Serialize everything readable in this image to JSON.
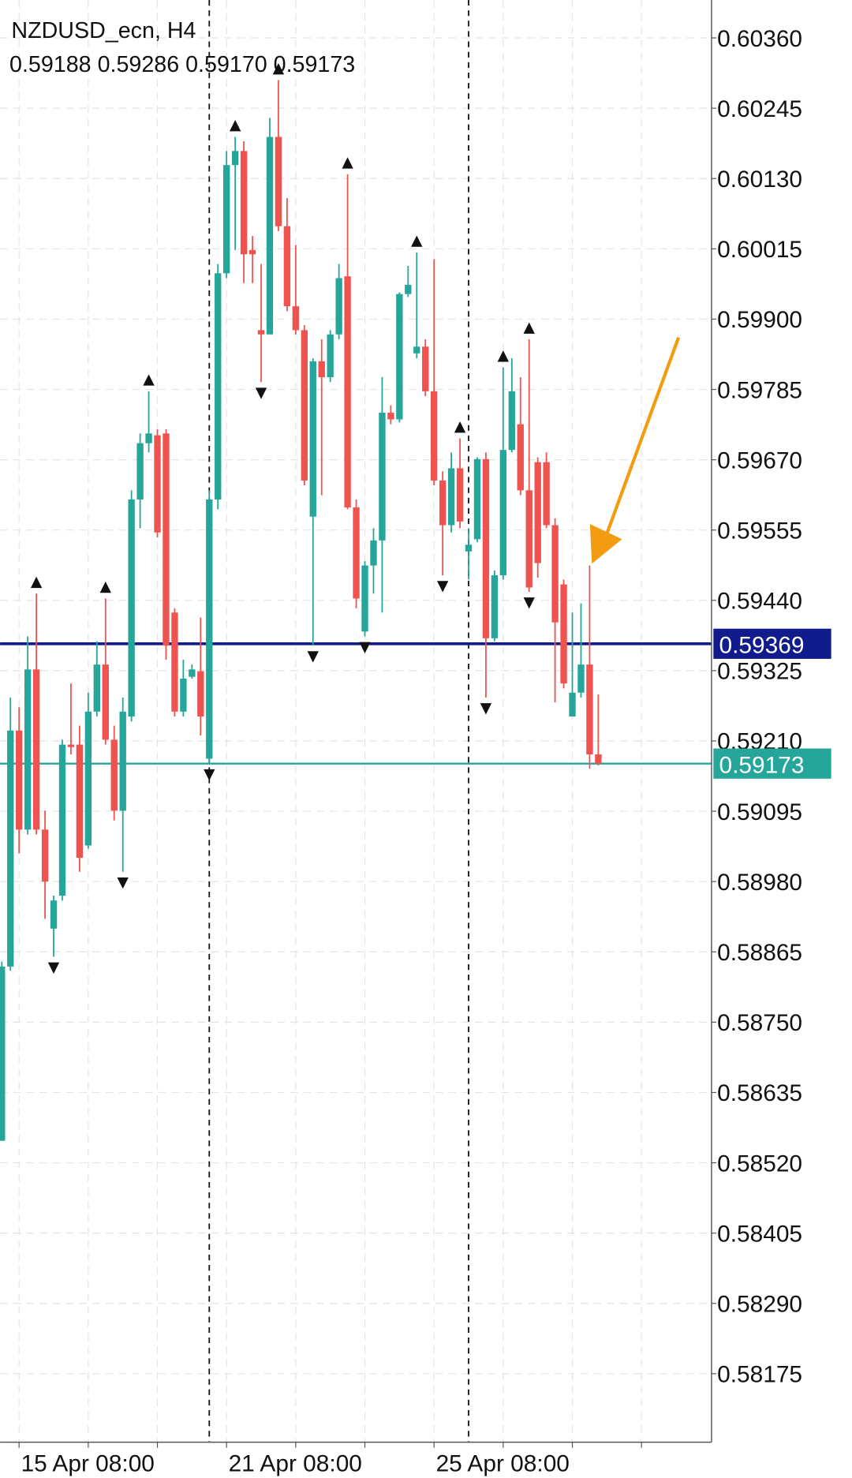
{
  "chart_data": {
    "type": "candlestick",
    "title": "NZDUSD_ecn, H4",
    "info": "0.59188 0.59286 0.59170 0.59173",
    "open": [
      0.58556,
      0.58841,
      0.59227,
      0.59065,
      0.59327,
      0.59065,
      0.58903,
      0.58957,
      0.59204,
      0.59204,
      0.59039,
      0.59258,
      0.59335,
      0.59212,
      0.59096,
      0.5925,
      0.59605,
      0.59697,
      0.5971,
      0.59713,
      0.5942,
      0.59258,
      0.59315,
      0.59324,
      0.59181,
      0.59605,
      0.59975,
      0.60152,
      0.60175,
      0.60013,
      0.59882,
      0.59875,
      0.60198,
      0.60052,
      0.59921,
      0.59882,
      0.59577,
      0.59831,
      0.59805,
      0.59875,
      0.5997,
      0.59592,
      0.59389,
      0.59497,
      0.59538,
      0.59747,
      0.59736,
      0.59941,
      0.59844,
      0.59855,
      0.59782,
      0.59636,
      0.59563,
      0.59656,
      0.5952,
      0.5954,
      0.59671,
      0.59378,
      0.59481,
      0.59686,
      0.59728,
      0.5962,
      0.59666,
      0.59666,
      0.59563,
      0.59466,
      0.5925,
      0.59289,
      0.59335,
      0.59188
    ],
    "high": [
      0.58849,
      0.59281,
      0.59265,
      0.59381,
      0.59451,
      0.59096,
      0.58957,
      0.59212,
      0.59304,
      0.59235,
      0.59289,
      0.59373,
      0.59443,
      0.59235,
      0.59281,
      0.5962,
      0.59713,
      0.59782,
      0.5972,
      0.5972,
      0.59427,
      0.59343,
      0.59335,
      0.59412,
      0.5962,
      0.5999,
      0.60175,
      0.60198,
      0.60191,
      0.60036,
      0.5999,
      0.60229,
      0.60291,
      0.60098,
      0.60021,
      0.5989,
      0.59836,
      0.59867,
      0.59882,
      0.5999,
      0.60137,
      0.59605,
      0.59504,
      0.59558,
      0.59805,
      0.59759,
      0.59944,
      0.59987,
      0.60009,
      0.59867,
      0.59998,
      0.59651,
      0.59682,
      0.59705,
      0.59558,
      0.59674,
      0.59682,
      0.59489,
      0.59821,
      0.59836,
      0.59805,
      0.59867,
      0.59674,
      0.59682,
      0.59574,
      0.59474,
      0.5942,
      0.59435,
      0.59497,
      0.59286
    ],
    "low": [
      0.58556,
      0.58834,
      0.59026,
      0.59057,
      0.59057,
      0.58919,
      0.58857,
      0.58949,
      0.59188,
      0.58996,
      0.59034,
      0.5925,
      0.59204,
      0.5908,
      0.58996,
      0.59242,
      0.59558,
      0.59682,
      0.59543,
      0.59343,
      0.5925,
      0.5925,
      0.59312,
      0.59219,
      0.59173,
      0.59589,
      0.59967,
      0.60013,
      0.59959,
      0.59959,
      0.59797,
      0.59875,
      0.60044,
      0.59913,
      0.59875,
      0.59628,
      0.59366,
      0.59612,
      0.59797,
      0.59867,
      0.59589,
      0.59427,
      0.59381,
      0.59451,
      0.5942,
      0.59728,
      0.59731,
      0.59936,
      0.59836,
      0.59774,
      0.59628,
      0.59481,
      0.59551,
      0.59558,
      0.59474,
      0.59535,
      0.59281,
      0.59373,
      0.59474,
      0.59682,
      0.59612,
      0.59454,
      0.59477,
      0.59558,
      0.59273,
      0.59296,
      0.5925,
      0.59281,
      0.59165,
      0.5917
    ],
    "close": [
      0.58841,
      0.59227,
      0.59065,
      0.59327,
      0.59065,
      0.5898,
      0.58949,
      0.59204,
      0.592,
      0.59019,
      0.59258,
      0.59335,
      0.59212,
      0.59096,
      0.59258,
      0.59605,
      0.59697,
      0.59713,
      0.59551,
      0.59366,
      0.59258,
      0.59312,
      0.59327,
      0.5925,
      0.59605,
      0.59975,
      0.60152,
      0.60175,
      0.60006,
      0.60006,
      0.59875,
      0.60198,
      0.60052,
      0.59921,
      0.59882,
      0.59636,
      0.59831,
      0.59805,
      0.59875,
      0.59967,
      0.59592,
      0.59443,
      0.59497,
      0.59538,
      0.59747,
      0.59736,
      0.59941,
      0.59956,
      0.59855,
      0.59782,
      0.59636,
      0.59563,
      0.59656,
      0.59569,
      0.59531,
      0.59671,
      0.59378,
      0.59481,
      0.59686,
      0.59782,
      0.5962,
      0.59461,
      0.59501,
      0.59563,
      0.59404,
      0.59304,
      0.59289,
      0.59335,
      0.59188,
      0.59173
    ],
    "up_color": "#26a69a",
    "down_color": "#ef5350",
    "fractals_up": [
      4,
      12,
      17,
      27,
      32,
      40,
      48,
      53,
      58,
      61
    ],
    "fractals_down": [
      6,
      14,
      24,
      30,
      36,
      42,
      51,
      56,
      61
    ],
    "separators": [
      24,
      54
    ],
    "price_lines": [
      {
        "value": 0.59369,
        "color": "#101c8c"
      },
      {
        "value": 0.59173,
        "color": "#26a69a"
      }
    ],
    "xlim": [
      -0.2,
      82.1
    ],
    "xticks": [
      {
        "value": 2,
        "label": "15 Apr 08:00"
      },
      {
        "value": 26,
        "label": "21 Apr 08:00"
      },
      {
        "value": 50,
        "label": "25 Apr 08:00"
      }
    ],
    "xgrid": [
      2,
      10,
      18,
      26,
      34,
      42,
      50,
      58,
      66,
      74
    ],
    "ylim": [
      0.58063,
      0.60422
    ],
    "yticks": [
      {
        "value": 0.6036,
        "label": "0.60360"
      },
      0.60245,
      {
        "value": 0.6013,
        "label": "0.60130"
      },
      0.60015,
      {
        "value": 0.599,
        "label": "0.59900"
      },
      0.59785,
      {
        "value": 0.5967,
        "label": "0.59670"
      },
      0.59555,
      {
        "value": 0.5944,
        "label": "0.59440"
      },
      0.59325,
      {
        "value": 0.5921,
        "label": "0.59210"
      },
      0.59095,
      {
        "value": 0.5898,
        "label": "0.58980"
      },
      0.58865,
      {
        "value": 0.5875,
        "label": "0.58750"
      },
      0.58635,
      {
        "value": 0.5852,
        "label": "0.58520"
      },
      0.58405,
      {
        "value": 0.5829,
        "label": "0.58290"
      },
      0.58175
    ],
    "grid": true
  }
}
